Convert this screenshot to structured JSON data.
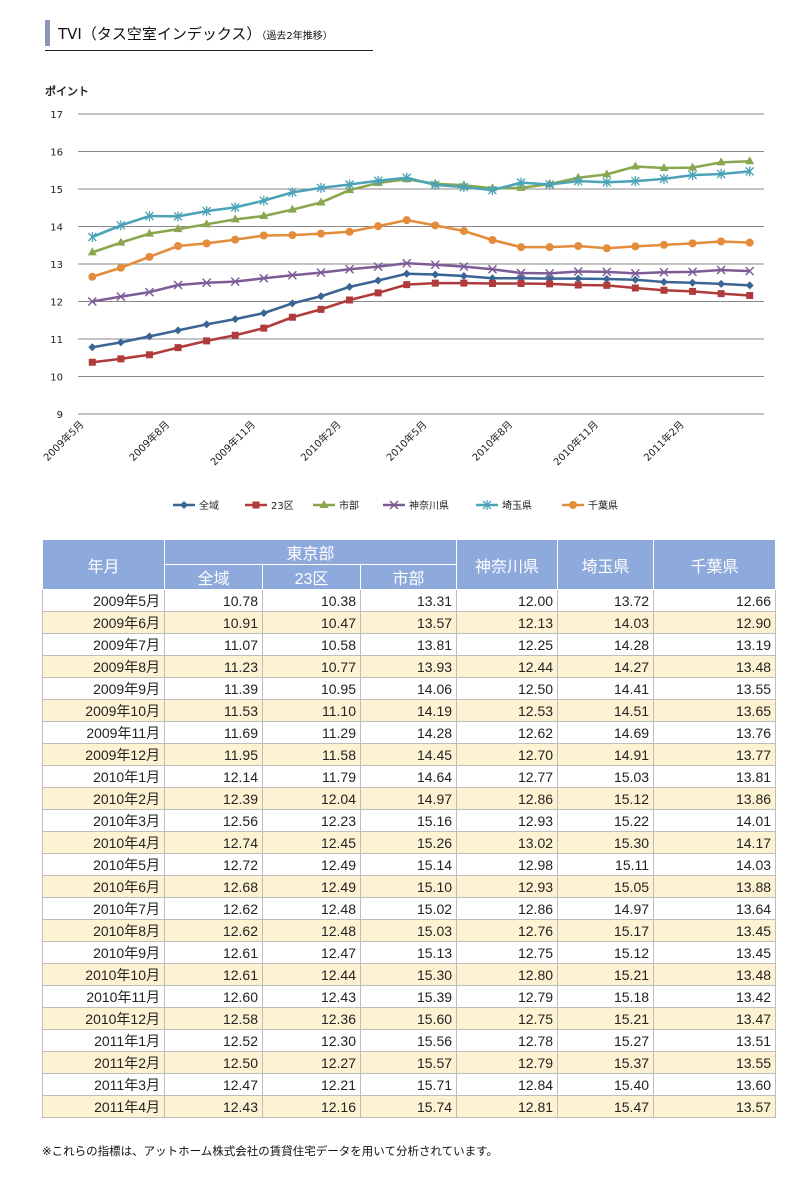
{
  "header": {
    "title_main": "TVI（タス空室インデックス）",
    "title_sub": "（過去2年推移）"
  },
  "chart_data": {
    "type": "line",
    "ylabel": "ポイント",
    "ylim": [
      9,
      17
    ],
    "yticks": [
      "9",
      "10",
      "11",
      "12",
      "13",
      "14",
      "15",
      "16",
      "17"
    ],
    "grid": true,
    "legend_position": "bottom",
    "x_tick_labels": [
      {
        "index": 0,
        "label": "2009年5月"
      },
      {
        "index": 3,
        "label": "2009年8月"
      },
      {
        "index": 6,
        "label": "2009年11月"
      },
      {
        "index": 9,
        "label": "2010年2月"
      },
      {
        "index": 12,
        "label": "2010年5月"
      },
      {
        "index": 15,
        "label": "2010年8月"
      },
      {
        "index": 18,
        "label": "2010年11月"
      },
      {
        "index": 21,
        "label": "2011年2月"
      }
    ],
    "categories": [
      "2009年5月",
      "2009年6月",
      "2009年7月",
      "2009年8月",
      "2009年9月",
      "2009年10月",
      "2009年11月",
      "2009年12月",
      "2010年1月",
      "2010年2月",
      "2010年3月",
      "2010年4月",
      "2010年5月",
      "2010年6月",
      "2010年7月",
      "2010年8月",
      "2010年9月",
      "2010年10月",
      "2010年11月",
      "2010年12月",
      "2011年1月",
      "2011年2月",
      "2011年3月",
      "2011年4月"
    ],
    "series": [
      {
        "name": "全域",
        "color": "#3b6595",
        "marker": "diamond",
        "values": [
          10.78,
          10.91,
          11.07,
          11.23,
          11.39,
          11.53,
          11.69,
          11.95,
          12.14,
          12.39,
          12.56,
          12.74,
          12.72,
          12.68,
          12.62,
          12.62,
          12.61,
          12.61,
          12.6,
          12.58,
          12.52,
          12.5,
          12.47,
          12.43
        ]
      },
      {
        "name": "23区",
        "color": "#b03b3b",
        "marker": "square",
        "values": [
          10.38,
          10.47,
          10.58,
          10.77,
          10.95,
          11.1,
          11.29,
          11.58,
          11.79,
          12.04,
          12.23,
          12.45,
          12.49,
          12.49,
          12.48,
          12.48,
          12.47,
          12.44,
          12.43,
          12.36,
          12.3,
          12.27,
          12.21,
          12.16
        ]
      },
      {
        "name": "市部",
        "color": "#8aa64f",
        "marker": "triangle",
        "values": [
          13.31,
          13.57,
          13.81,
          13.93,
          14.06,
          14.19,
          14.28,
          14.45,
          14.64,
          14.97,
          15.16,
          15.26,
          15.14,
          15.1,
          15.02,
          15.03,
          15.13,
          15.3,
          15.39,
          15.6,
          15.56,
          15.57,
          15.71,
          15.74
        ]
      },
      {
        "name": "神奈川県",
        "color": "#7e5c96",
        "marker": "x",
        "values": [
          12.0,
          12.13,
          12.25,
          12.44,
          12.5,
          12.53,
          12.62,
          12.7,
          12.77,
          12.86,
          12.93,
          13.02,
          12.98,
          12.93,
          12.86,
          12.76,
          12.75,
          12.8,
          12.79,
          12.75,
          12.78,
          12.79,
          12.84,
          12.81
        ]
      },
      {
        "name": "埼玉県",
        "color": "#4ca3b8",
        "marker": "star",
        "values": [
          13.72,
          14.03,
          14.28,
          14.27,
          14.41,
          14.51,
          14.69,
          14.91,
          15.03,
          15.12,
          15.22,
          15.3,
          15.11,
          15.05,
          14.97,
          15.17,
          15.12,
          15.21,
          15.18,
          15.21,
          15.27,
          15.37,
          15.4,
          15.47
        ]
      },
      {
        "name": "千葉県",
        "color": "#e38c3c",
        "marker": "circle",
        "values": [
          12.66,
          12.9,
          13.19,
          13.48,
          13.55,
          13.65,
          13.76,
          13.77,
          13.81,
          13.86,
          14.01,
          14.17,
          14.03,
          13.88,
          13.64,
          13.45,
          13.45,
          13.48,
          13.42,
          13.47,
          13.51,
          13.55,
          13.6,
          13.57
        ]
      }
    ]
  },
  "table": {
    "header_month": "年月",
    "header_tokyo": "東京部",
    "sub_headers": [
      "全域",
      "23区",
      "市部"
    ],
    "header_kanagawa": "神奈川県",
    "header_saitama": "埼玉県",
    "header_chiba": "千葉県",
    "rows": [
      {
        "month": "2009年5月",
        "zeniki": "10.78",
        "ku23": "10.38",
        "shibu": "13.31",
        "kanagawa": "12.00",
        "saitama": "13.72",
        "chiba": "12.66"
      },
      {
        "month": "2009年6月",
        "zeniki": "10.91",
        "ku23": "10.47",
        "shibu": "13.57",
        "kanagawa": "12.13",
        "saitama": "14.03",
        "chiba": "12.90"
      },
      {
        "month": "2009年7月",
        "zeniki": "11.07",
        "ku23": "10.58",
        "shibu": "13.81",
        "kanagawa": "12.25",
        "saitama": "14.28",
        "chiba": "13.19"
      },
      {
        "month": "2009年8月",
        "zeniki": "11.23",
        "ku23": "10.77",
        "shibu": "13.93",
        "kanagawa": "12.44",
        "saitama": "14.27",
        "chiba": "13.48"
      },
      {
        "month": "2009年9月",
        "zeniki": "11.39",
        "ku23": "10.95",
        "shibu": "14.06",
        "kanagawa": "12.50",
        "saitama": "14.41",
        "chiba": "13.55"
      },
      {
        "month": "2009年10月",
        "zeniki": "11.53",
        "ku23": "11.10",
        "shibu": "14.19",
        "kanagawa": "12.53",
        "saitama": "14.51",
        "chiba": "13.65"
      },
      {
        "month": "2009年11月",
        "zeniki": "11.69",
        "ku23": "11.29",
        "shibu": "14.28",
        "kanagawa": "12.62",
        "saitama": "14.69",
        "chiba": "13.76"
      },
      {
        "month": "2009年12月",
        "zeniki": "11.95",
        "ku23": "11.58",
        "shibu": "14.45",
        "kanagawa": "12.70",
        "saitama": "14.91",
        "chiba": "13.77"
      },
      {
        "month": "2010年1月",
        "zeniki": "12.14",
        "ku23": "11.79",
        "shibu": "14.64",
        "kanagawa": "12.77",
        "saitama": "15.03",
        "chiba": "13.81"
      },
      {
        "month": "2010年2月",
        "zeniki": "12.39",
        "ku23": "12.04",
        "shibu": "14.97",
        "kanagawa": "12.86",
        "saitama": "15.12",
        "chiba": "13.86"
      },
      {
        "month": "2010年3月",
        "zeniki": "12.56",
        "ku23": "12.23",
        "shibu": "15.16",
        "kanagawa": "12.93",
        "saitama": "15.22",
        "chiba": "14.01"
      },
      {
        "month": "2010年4月",
        "zeniki": "12.74",
        "ku23": "12.45",
        "shibu": "15.26",
        "kanagawa": "13.02",
        "saitama": "15.30",
        "chiba": "14.17"
      },
      {
        "month": "2010年5月",
        "zeniki": "12.72",
        "ku23": "12.49",
        "shibu": "15.14",
        "kanagawa": "12.98",
        "saitama": "15.11",
        "chiba": "14.03"
      },
      {
        "month": "2010年6月",
        "zeniki": "12.68",
        "ku23": "12.49",
        "shibu": "15.10",
        "kanagawa": "12.93",
        "saitama": "15.05",
        "chiba": "13.88"
      },
      {
        "month": "2010年7月",
        "zeniki": "12.62",
        "ku23": "12.48",
        "shibu": "15.02",
        "kanagawa": "12.86",
        "saitama": "14.97",
        "chiba": "13.64"
      },
      {
        "month": "2010年8月",
        "zeniki": "12.62",
        "ku23": "12.48",
        "shibu": "15.03",
        "kanagawa": "12.76",
        "saitama": "15.17",
        "chiba": "13.45"
      },
      {
        "month": "2010年9月",
        "zeniki": "12.61",
        "ku23": "12.47",
        "shibu": "15.13",
        "kanagawa": "12.75",
        "saitama": "15.12",
        "chiba": "13.45"
      },
      {
        "month": "2010年10月",
        "zeniki": "12.61",
        "ku23": "12.44",
        "shibu": "15.30",
        "kanagawa": "12.80",
        "saitama": "15.21",
        "chiba": "13.48"
      },
      {
        "month": "2010年11月",
        "zeniki": "12.60",
        "ku23": "12.43",
        "shibu": "15.39",
        "kanagawa": "12.79",
        "saitama": "15.18",
        "chiba": "13.42"
      },
      {
        "month": "2010年12月",
        "zeniki": "12.58",
        "ku23": "12.36",
        "shibu": "15.60",
        "kanagawa": "12.75",
        "saitama": "15.21",
        "chiba": "13.47"
      },
      {
        "month": "2011年1月",
        "zeniki": "12.52",
        "ku23": "12.30",
        "shibu": "15.56",
        "kanagawa": "12.78",
        "saitama": "15.27",
        "chiba": "13.51"
      },
      {
        "month": "2011年2月",
        "zeniki": "12.50",
        "ku23": "12.27",
        "shibu": "15.57",
        "kanagawa": "12.79",
        "saitama": "15.37",
        "chiba": "13.55"
      },
      {
        "month": "2011年3月",
        "zeniki": "12.47",
        "ku23": "12.21",
        "shibu": "15.71",
        "kanagawa": "12.84",
        "saitama": "15.40",
        "chiba": "13.60"
      },
      {
        "month": "2011年4月",
        "zeniki": "12.43",
        "ku23": "12.16",
        "shibu": "15.74",
        "kanagawa": "12.81",
        "saitama": "15.47",
        "chiba": "13.57"
      }
    ]
  },
  "note": "※これらの指標は、アットホーム株式会社の賃貸住宅データを用いて分析されています。"
}
